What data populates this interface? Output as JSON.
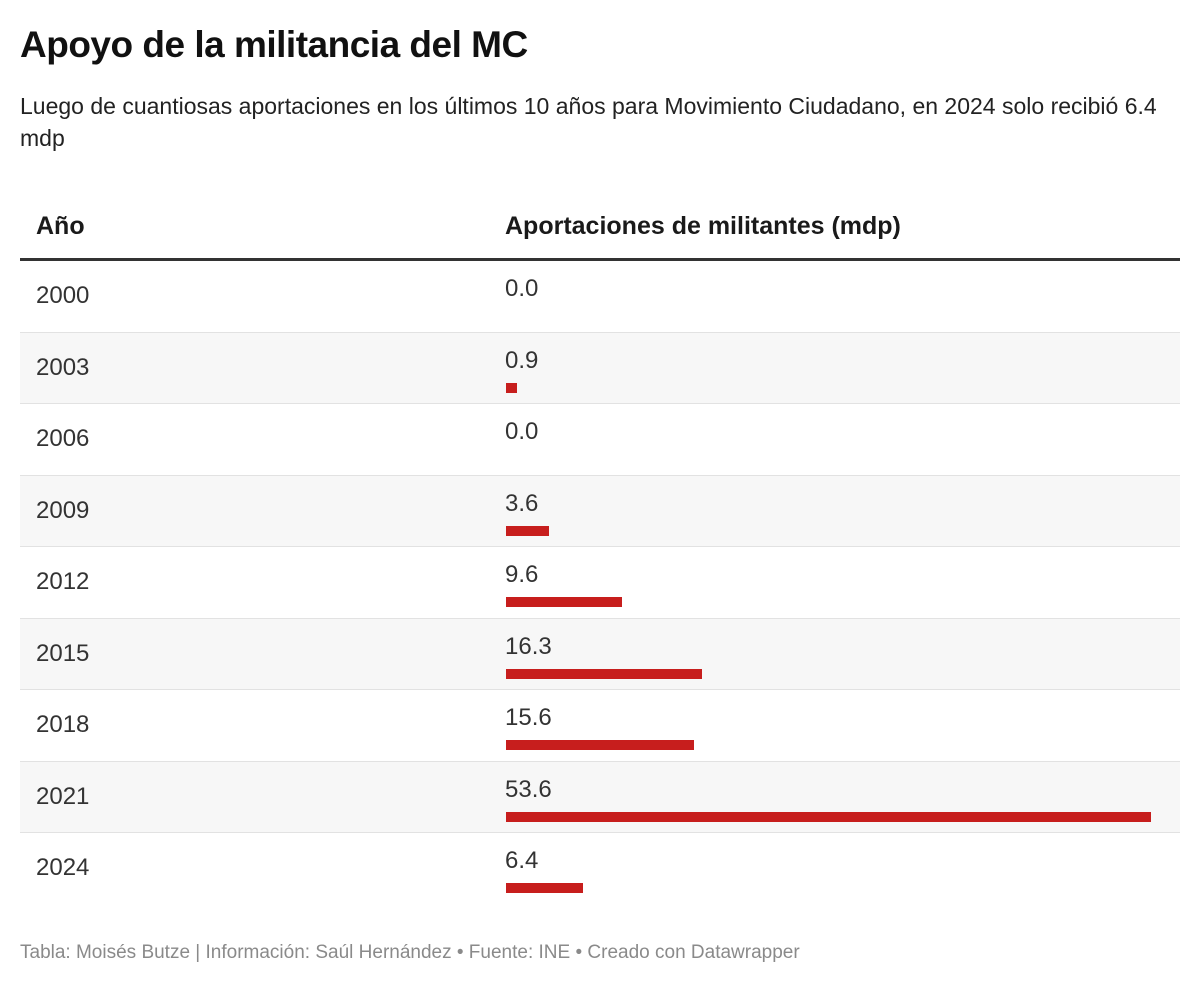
{
  "title": "Apoyo de la militancia del MC",
  "subtitle": "Luego de cuantiosas aportaciones en los últimos 10 años para Movimiento Ciudadano, en 2024 solo recibió 6.4 mdp",
  "footer": "Tabla: Moisés Butze | Información: Saúl Hernández • Fuente: INE • Creado con Datawrapper",
  "colors": {
    "bar": "#c71e1d"
  },
  "chart_data": {
    "type": "table",
    "columns": [
      "Año",
      "Aportaciones de militantes (mdp)"
    ],
    "categories": [
      "2000",
      "2003",
      "2006",
      "2009",
      "2012",
      "2015",
      "2018",
      "2021",
      "2024"
    ],
    "values": [
      0.0,
      0.9,
      0.0,
      3.6,
      9.6,
      16.3,
      15.6,
      53.6,
      6.4
    ],
    "labels": [
      "0.0",
      "0.9",
      "0.0",
      "3.6",
      "9.6",
      "16.3",
      "15.6",
      "53.6",
      "6.4"
    ],
    "bar_max": 53.6
  }
}
